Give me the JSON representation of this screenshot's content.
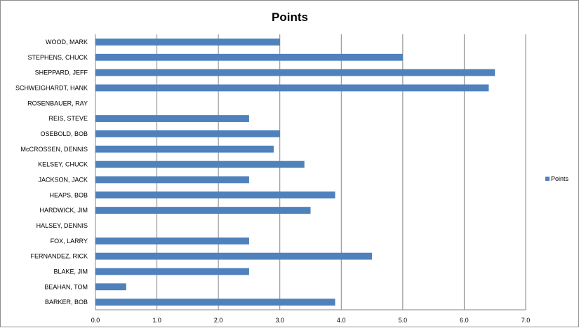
{
  "chart_data": {
    "type": "bar",
    "orientation": "horizontal",
    "title": "Points",
    "xlabel": "",
    "ylabel": "",
    "xlim": [
      0,
      7
    ],
    "ticks": [
      "0.0",
      "1.0",
      "2.0",
      "3.0",
      "4.0",
      "5.0",
      "6.0",
      "7.0"
    ],
    "grid": true,
    "legend_position": "right",
    "categories": [
      "WOOD, MARK",
      "STEPHENS, CHUCK",
      "SHEPPARD, JEFF",
      "SCHWEIGHARDT, HANK",
      "ROSENBAUER, RAY",
      "REIS, STEVE",
      "OSEBOLD, BOB",
      "McCROSSEN, DENNIS",
      "KELSEY, CHUCK",
      "JACKSON, JACK",
      "HEAPS, BOB",
      "HARDWICK, JIM",
      "HALSEY, DENNIS",
      "FOX, LARRY",
      "FERNANDEZ, RICK",
      "BLAKE, JIM",
      "BEAHAN, TOM",
      "BARKER, BOB"
    ],
    "series": [
      {
        "name": "Points",
        "color": "#4f81bd",
        "values": [
          3.0,
          5.0,
          6.5,
          6.4,
          0,
          2.5,
          3.0,
          2.9,
          3.4,
          2.5,
          3.9,
          3.5,
          0,
          2.5,
          4.5,
          2.5,
          0.5,
          3.9
        ]
      }
    ]
  }
}
